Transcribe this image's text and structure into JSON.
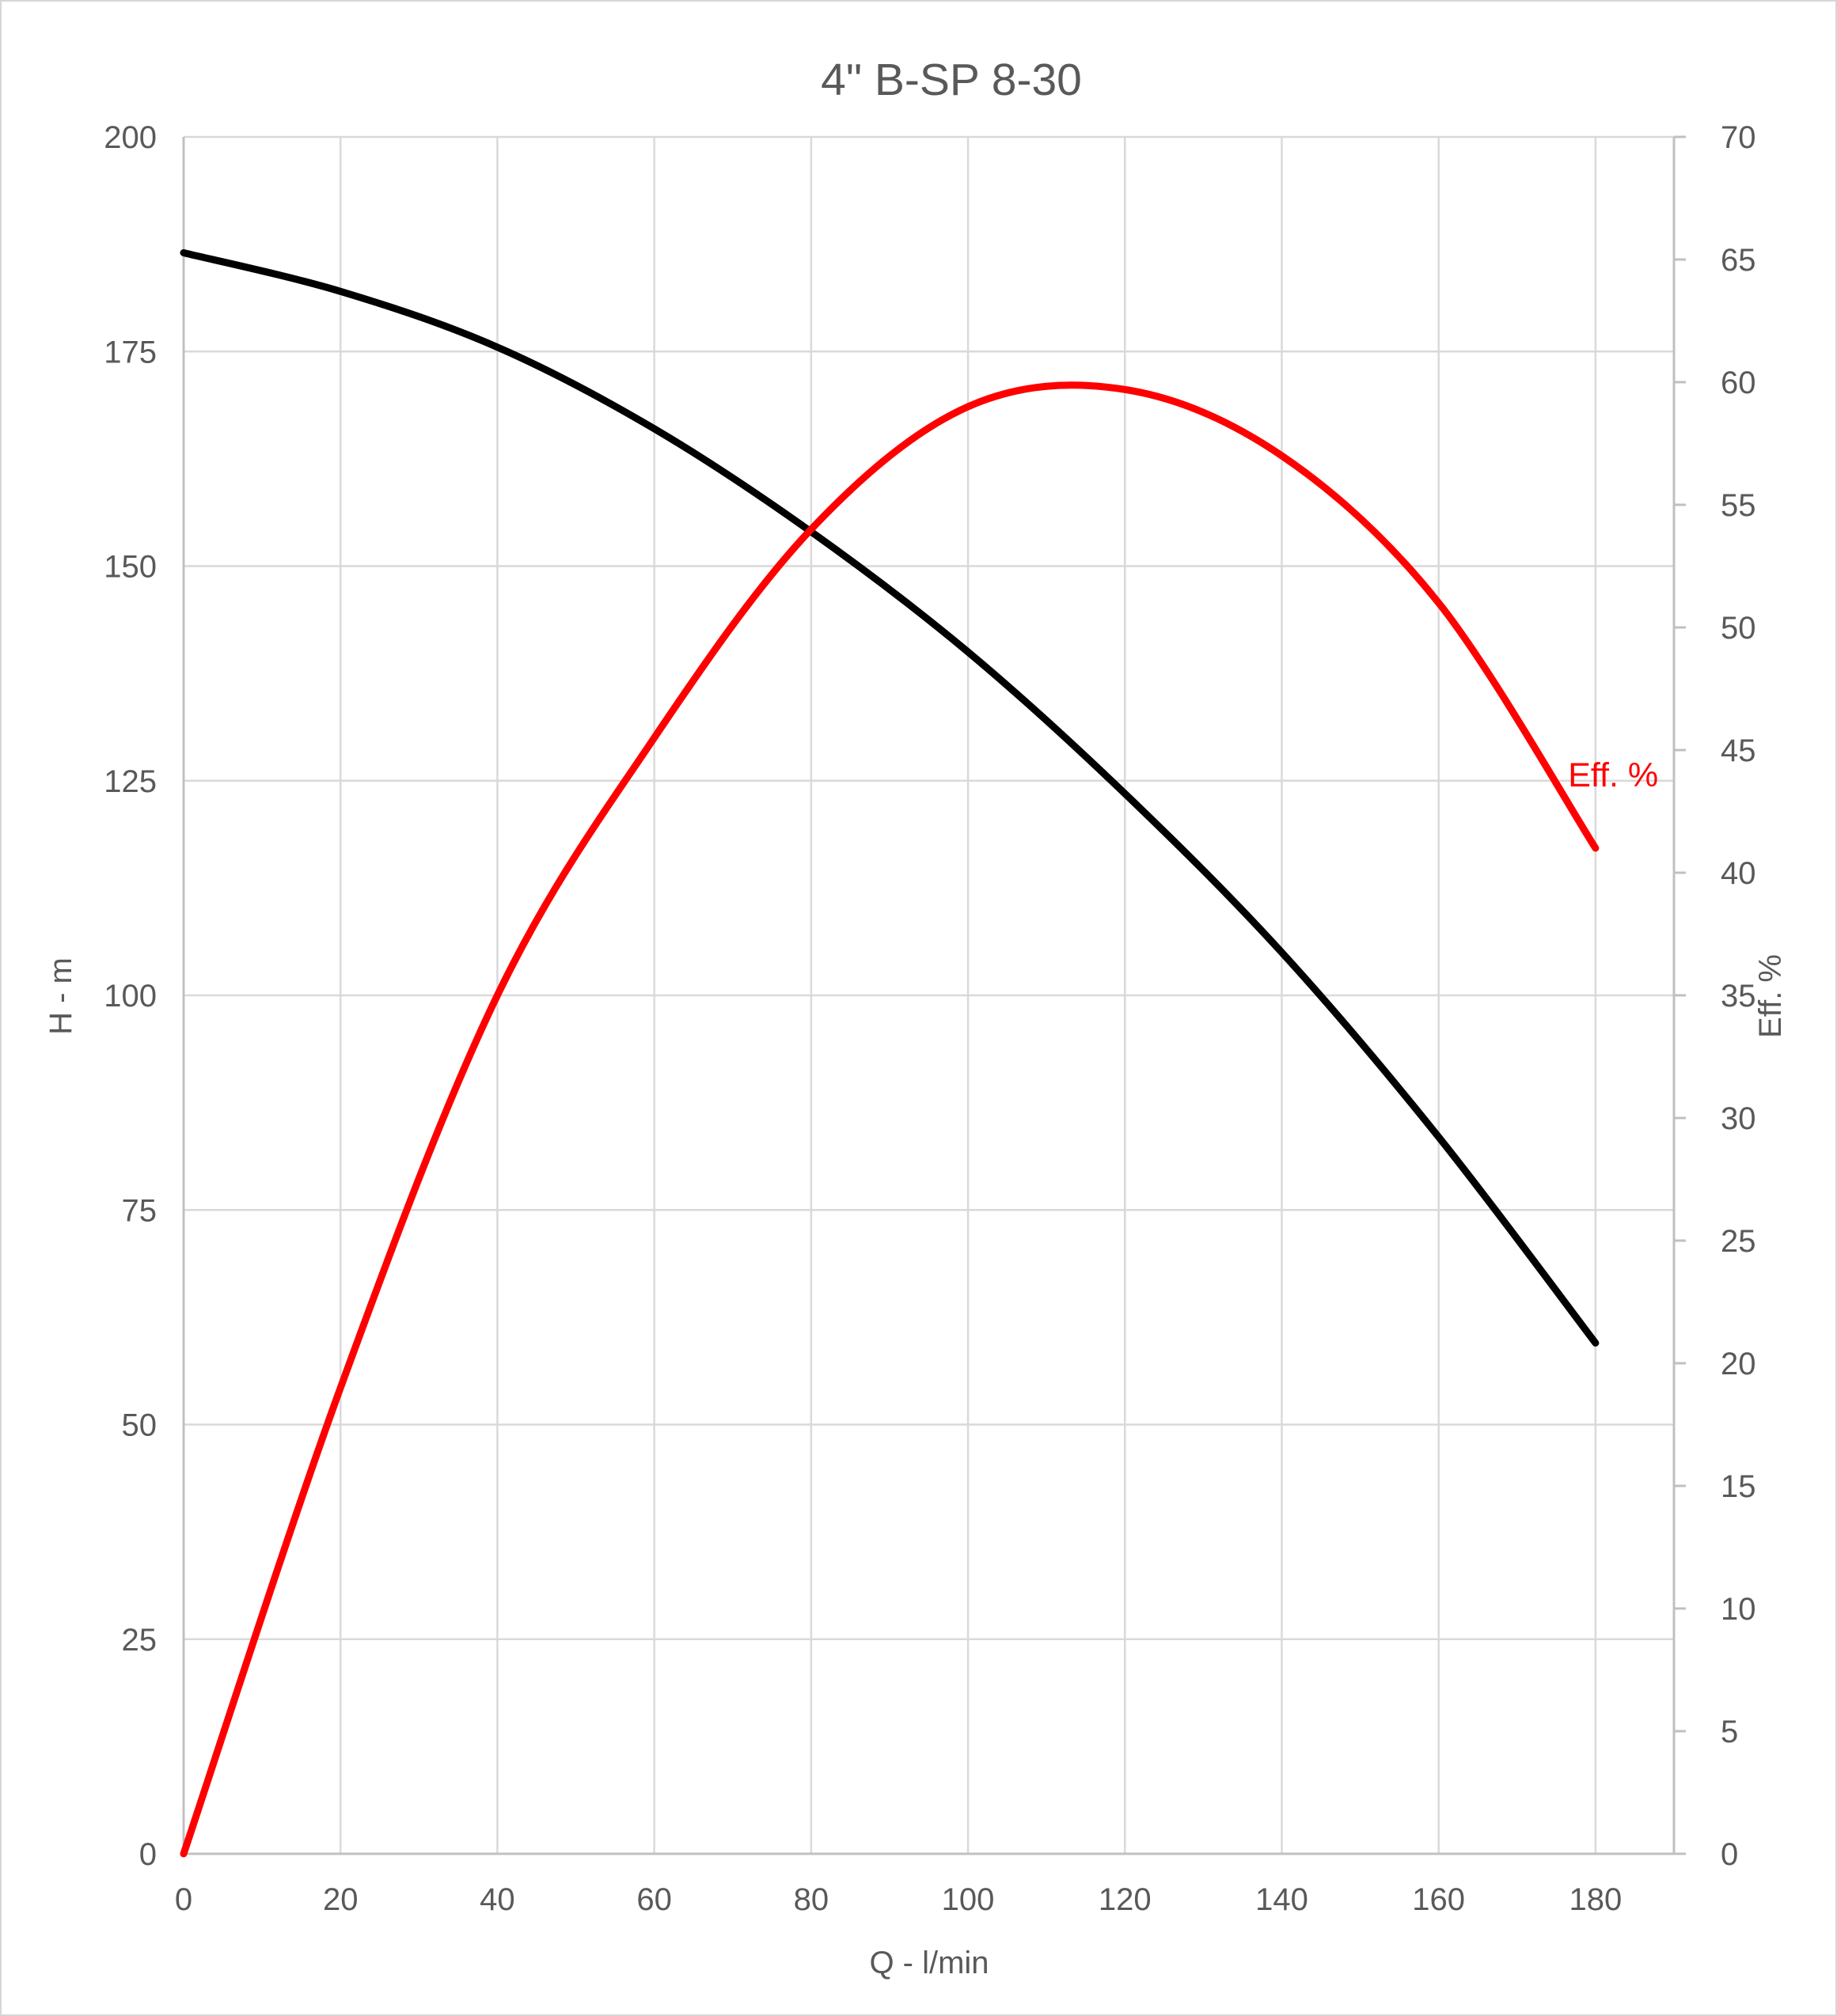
{
  "chart_data": {
    "type": "line",
    "title": "4\" B-SP 8-30",
    "xlabel": "Q - l/min",
    "ylabel_left": "H - m",
    "ylabel_right": "Eff. %",
    "x_axis": {
      "min": 0,
      "max": 190,
      "tick_step": 20,
      "last_label": 180,
      "tick_labels": [
        0,
        20,
        40,
        60,
        80,
        100,
        120,
        140,
        160,
        180
      ]
    },
    "y_axis_left": {
      "min": 0,
      "max": 200,
      "tick_step": 25,
      "tick_labels": [
        0,
        25,
        50,
        75,
        100,
        125,
        150,
        175,
        200
      ],
      "gridlines": true
    },
    "y_axis_right": {
      "min": 0,
      "max": 70,
      "tick_step": 5,
      "tick_labels": [
        0,
        5,
        10,
        15,
        20,
        25,
        30,
        35,
        40,
        45,
        50,
        55,
        60,
        65,
        70
      ],
      "gridlines": false
    },
    "grid": {
      "vertical": true,
      "horizontal": true
    },
    "legend_position": "none",
    "series": [
      {
        "name": "H - m (head curve)",
        "axis": "left",
        "color": "#000000",
        "x": [
          0,
          20,
          40,
          60,
          80,
          100,
          120,
          140,
          160,
          180
        ],
        "y": [
          186.5,
          182,
          175.5,
          166,
          154,
          140,
          123.5,
          105,
          83.5,
          59.5
        ]
      },
      {
        "name": "Eff. % (efficiency curve)",
        "axis": "right",
        "color": "#ff0000",
        "label": "Eff. %",
        "label_anchor": {
          "q": 176.5,
          "eff": 44
        },
        "x": [
          0,
          20,
          40,
          60,
          80,
          100,
          120,
          140,
          160,
          180
        ],
        "y": [
          0,
          19,
          35,
          45.5,
          54,
          59,
          59.7,
          57,
          51,
          41
        ],
        "peak": {
          "q": 114,
          "eff": 60
        }
      }
    ],
    "colors": {
      "text": "#595959",
      "gridline": "#d9d9d9",
      "axis_line": "#c0c0c0",
      "head_curve": "#000000",
      "efficiency_curve": "#ff0000"
    }
  }
}
